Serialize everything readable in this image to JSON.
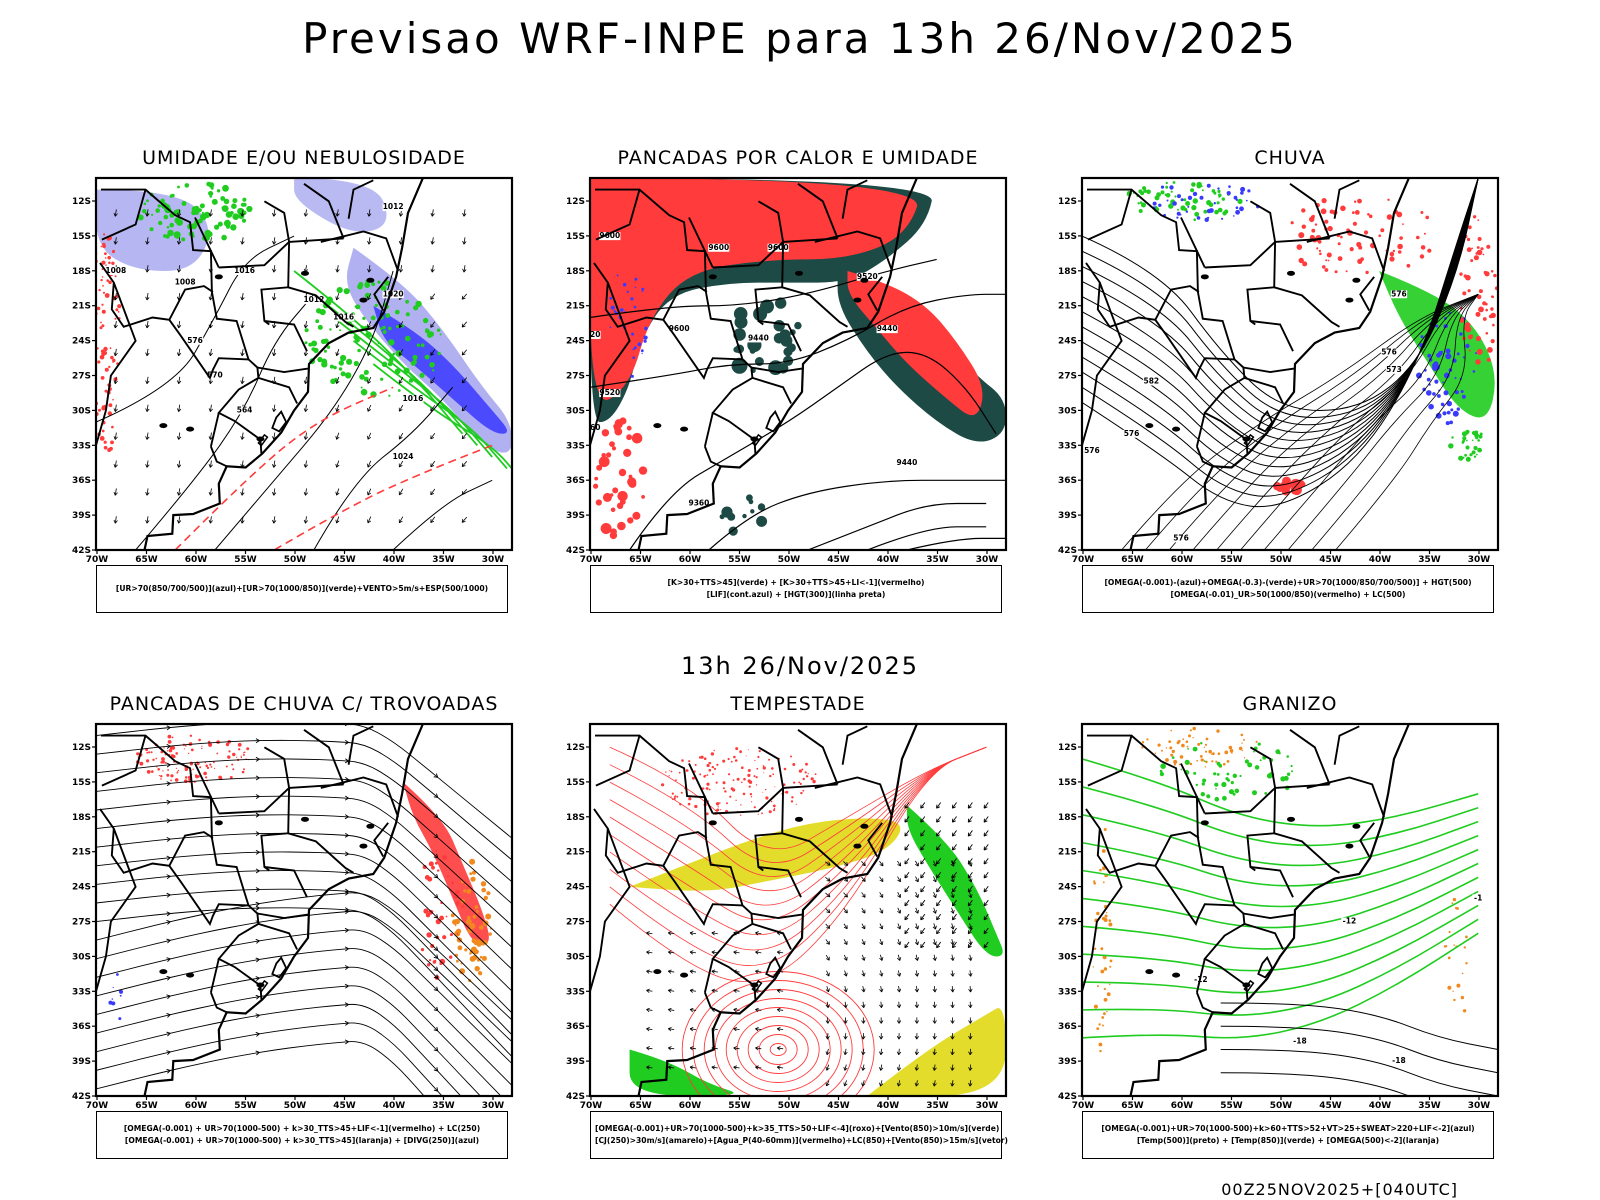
{
  "title": "Previsao WRF-INPE  para 13h 26/Nov/2025",
  "subtitle": "13h 26/Nov/2025",
  "footer": "00Z25NOV2025+[040UTC]",
  "axes": {
    "lat_labels": [
      "12S",
      "15S",
      "18S",
      "21S",
      "24S",
      "27S",
      "30S",
      "33S",
      "36S",
      "39S",
      "42S"
    ],
    "lon_labels": [
      "70W",
      "65W",
      "60W",
      "55W",
      "50W",
      "45W",
      "40W",
      "35W",
      "30W"
    ]
  },
  "colors": {
    "frame": "#000000",
    "red": "#ff3b3b",
    "green": "#1fcc1f",
    "blue": "#3a3aff",
    "lavender": "#a9a9f0",
    "darkteal": "#1e4a46",
    "yellow": "#e3dc2a",
    "orange": "#f08a1e"
  },
  "panels": [
    {
      "id": "umidade",
      "title": "UMIDADE E/OU NEBULOSIDADE",
      "legend": [
        "[UR>70(850/700/500)](azul)+[UR>70(1000/850)](verde)+VENTO>5m/s+ESP(500/1000)"
      ],
      "contour_labels": [
        "1012",
        "1016",
        "1008",
        "1012",
        "1016",
        "1020",
        "1016",
        "1024",
        "1008",
        "576",
        "570",
        "564"
      ]
    },
    {
      "id": "pancadas-calor",
      "title": "PANCADAS POR CALOR E UMIDADE",
      "legend": [
        "[K>30+TTS>45](verde)  +  [K>30+TTS>45+LI<-1](vermelho)",
        "[LIF](cont.azul)  +  [HGT(300)](linha preta)"
      ],
      "contour_labels": [
        "9600",
        "9600",
        "9600",
        "9520",
        "9600",
        "9520",
        "9520",
        "9440",
        "9440",
        "9360",
        "9440",
        "9360"
      ]
    },
    {
      "id": "chuva",
      "title": "CHUVA",
      "legend": [
        "[OMEGA(-0.001)-(azul)+OMEGA(-0.3)-(verde)+UR>70(1000/850/700/500)]  +  HGT(500)",
        "[OMEGA(-0.01)_UR>50(1000/850)(vermelho)  +  LC(500)"
      ],
      "contour_labels": [
        "576",
        "576",
        "582",
        "576",
        "576",
        "576",
        "573"
      ]
    },
    {
      "id": "trovoadas",
      "title": "PANCADAS DE CHUVA C/ TROVOADAS",
      "legend": [
        "[OMEGA(-0.001)  +  UR>70(1000-500)  +  k>30_TTS>45+LIF<-1](vermelho)  +  LC(250)",
        "[OMEGA(-0.001)  +  UR>70(1000-500)  +  k>30_TTS>45](laranja)  +  [DIVG(250)](azul)"
      ],
      "contour_labels": []
    },
    {
      "id": "tempestade",
      "title": "TEMPESTADE",
      "legend": [
        "[OMEGA(-0.001)+UR>70(1000-500)+k>35_TTS>50+LIF<-4](roxo)+[Vento(850)>10m/s](verde)",
        "[CJ(250)>30m/s](amarelo)+[Agua_P(40-60mm)](vermelho)+LC(850)+[Vento(850)>15m/s](vetor)"
      ],
      "contour_labels": []
    },
    {
      "id": "granizo",
      "title": "GRANIZO",
      "legend": [
        "[OMEGA(-0.001)+UR>70(1000-500)+k>60+TTS>52+VT>25+SWEAT>220+LIF<-2](azul)",
        "[Temp(500)](preto)  +  [Temp(850)](verde)  +  [OMEGA(500)<-2](laranja)"
      ],
      "contour_labels": [
        "-12",
        "-18",
        "-18",
        "-12",
        "-1"
      ]
    }
  ]
}
